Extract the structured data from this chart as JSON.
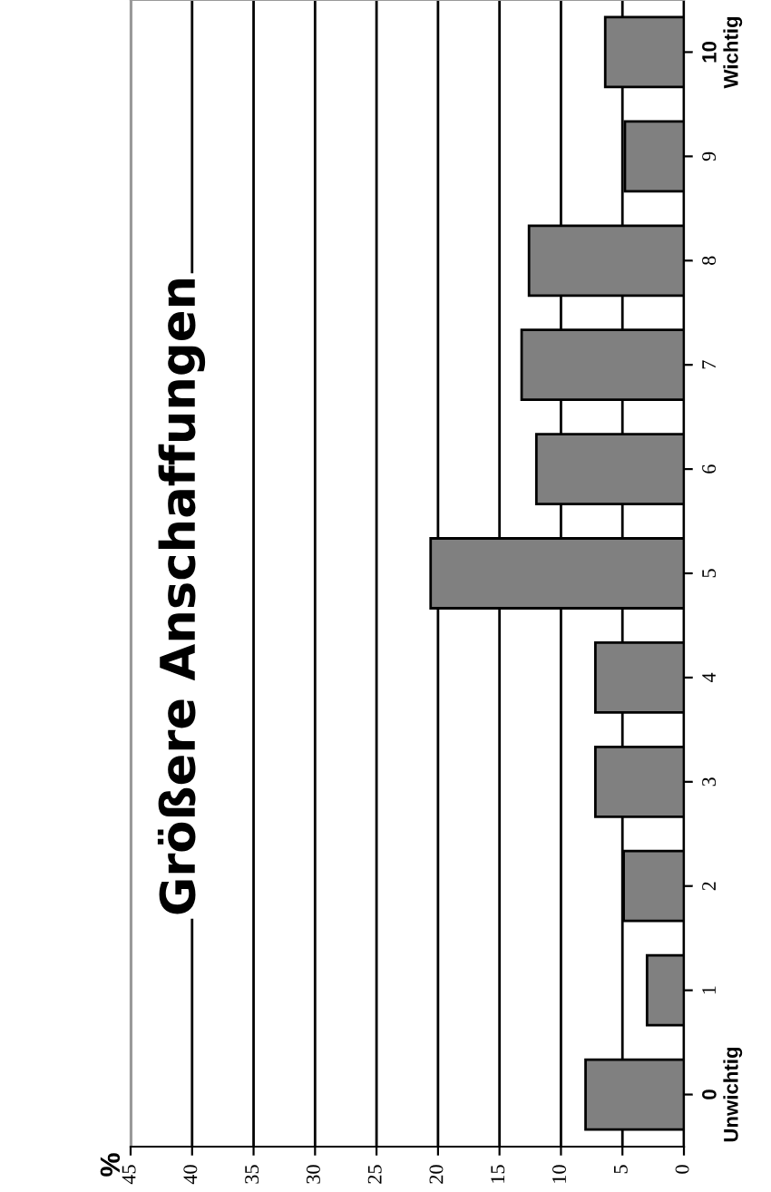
{
  "chart_data": {
    "type": "bar",
    "orientation": "horizontal",
    "title": "Größere Anschaffungen",
    "annotations": [
      "%"
    ],
    "categories": [
      "10\nWichtig",
      "9",
      "8",
      "7",
      "6",
      "5",
      "4",
      "3",
      "2",
      "1",
      "0\nUnwichtig"
    ],
    "values": [
      6.4,
      4.8,
      12.6,
      13.2,
      12.0,
      20.6,
      7.2,
      7.2,
      4.9,
      3.0,
      8.0
    ],
    "color": "#808080",
    "xlim": [
      45,
      0
    ],
    "xticks": [
      0,
      5,
      10,
      15,
      20,
      25,
      30,
      35,
      40,
      45
    ],
    "grid": "x"
  }
}
